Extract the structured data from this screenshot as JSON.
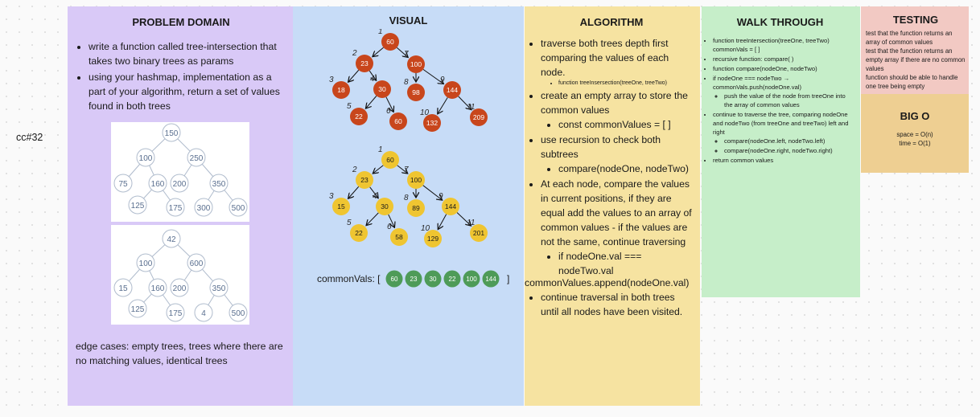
{
  "side_label": "cc#32",
  "problem_domain": {
    "title": "PROBLEM DOMAIN",
    "bullets": [
      "write a function called tree-intersection that takes two binary trees as params",
      "using your hashmap, implementation as a part of your algorithm, return a set of values found in both trees"
    ],
    "edge_cases": "edge cases: empty trees, trees where there are no matching values, identical trees",
    "tree_a_values": [
      "150",
      "100",
      "250",
      "75",
      "160",
      "200",
      "350",
      "125",
      "175",
      "300",
      "500"
    ],
    "tree_b_values": [
      "42",
      "100",
      "600",
      "15",
      "160",
      "200",
      "350",
      "125",
      "175",
      "4",
      "500"
    ]
  },
  "visual": {
    "title": "VISUAL",
    "tree_one": {
      "values": [
        "60",
        "23",
        "100",
        "18",
        "30",
        "98",
        "144",
        "22",
        "60",
        "132",
        "209"
      ],
      "step_numbers": [
        "1",
        "2",
        "7",
        "3",
        "4",
        "8",
        "9",
        "5",
        "6",
        "10",
        "11"
      ],
      "color": "#c8461c"
    },
    "tree_two": {
      "values": [
        "60",
        "23",
        "100",
        "15",
        "30",
        "89",
        "144",
        "22",
        "58",
        "129",
        "201"
      ],
      "step_numbers": [
        "1",
        "2",
        "7",
        "3",
        "4",
        "8",
        "9",
        "5",
        "6",
        "10",
        "11"
      ],
      "color": "#efc531"
    },
    "common_label": "commonVals: [",
    "common_close": "]",
    "common_values": [
      "60",
      "23",
      "30",
      "22",
      "100",
      "144"
    ],
    "common_color": "#4e9b58"
  },
  "algorithm": {
    "title": "ALGORITHM",
    "b1": "traverse both trees depth first comparing the values of each node.",
    "b1_small": "function treeInsersection(treeOne, treeTwo)",
    "b2": "create an empty array to store the common values",
    "b2_sub": "const commonValues = [ ]",
    "b3": "use recursion to check both subtrees",
    "b3_sub": "compare(nodeOne, nodeTwo)",
    "b4": "At each node, compare the values in current positions, if they are equal add the values to an array of common values - if the values are not the same, continue traversing",
    "b4_sub": "if nodeOne.val === nodeTwo.val",
    "append": "commonValues.append(nodeOne.val)",
    "b5": "continue traversal in both trees until all nodes have been visited."
  },
  "walk_through": {
    "title": "WALK THROUGH",
    "l1": "function treeIntersection(treeOne, treeTwo) commonVals = [ ]",
    "l2": "recursive function: compare( )",
    "l3": "function compare(nodeOne, nodeTwo)",
    "l4": "if nodeOne === nodeTwo → commonVals.push(nodeOne.val)",
    "l4_sub": "push the value of the node from treeOne into the array of common values",
    "l5": "continue to traverse the tree, comparing nodeOne and nodeTwo (from treeOne and treeTwo) left and right",
    "l5_sub1": "compare(nodeOne.left, nodeTwo.left)",
    "l5_sub2": "compare(nodeOne.right, nodeTwo.right)",
    "l6": "return common values"
  },
  "testing": {
    "title": "TESTING",
    "l1": "test that the function returns an array of common values",
    "l2": "test that the function returns an empty array if there are no common values",
    "l3": "function should be able to handle one tree being empty"
  },
  "big_o": {
    "title": "BIG O",
    "space": "space = O(n)",
    "time": "time = O(1)"
  }
}
